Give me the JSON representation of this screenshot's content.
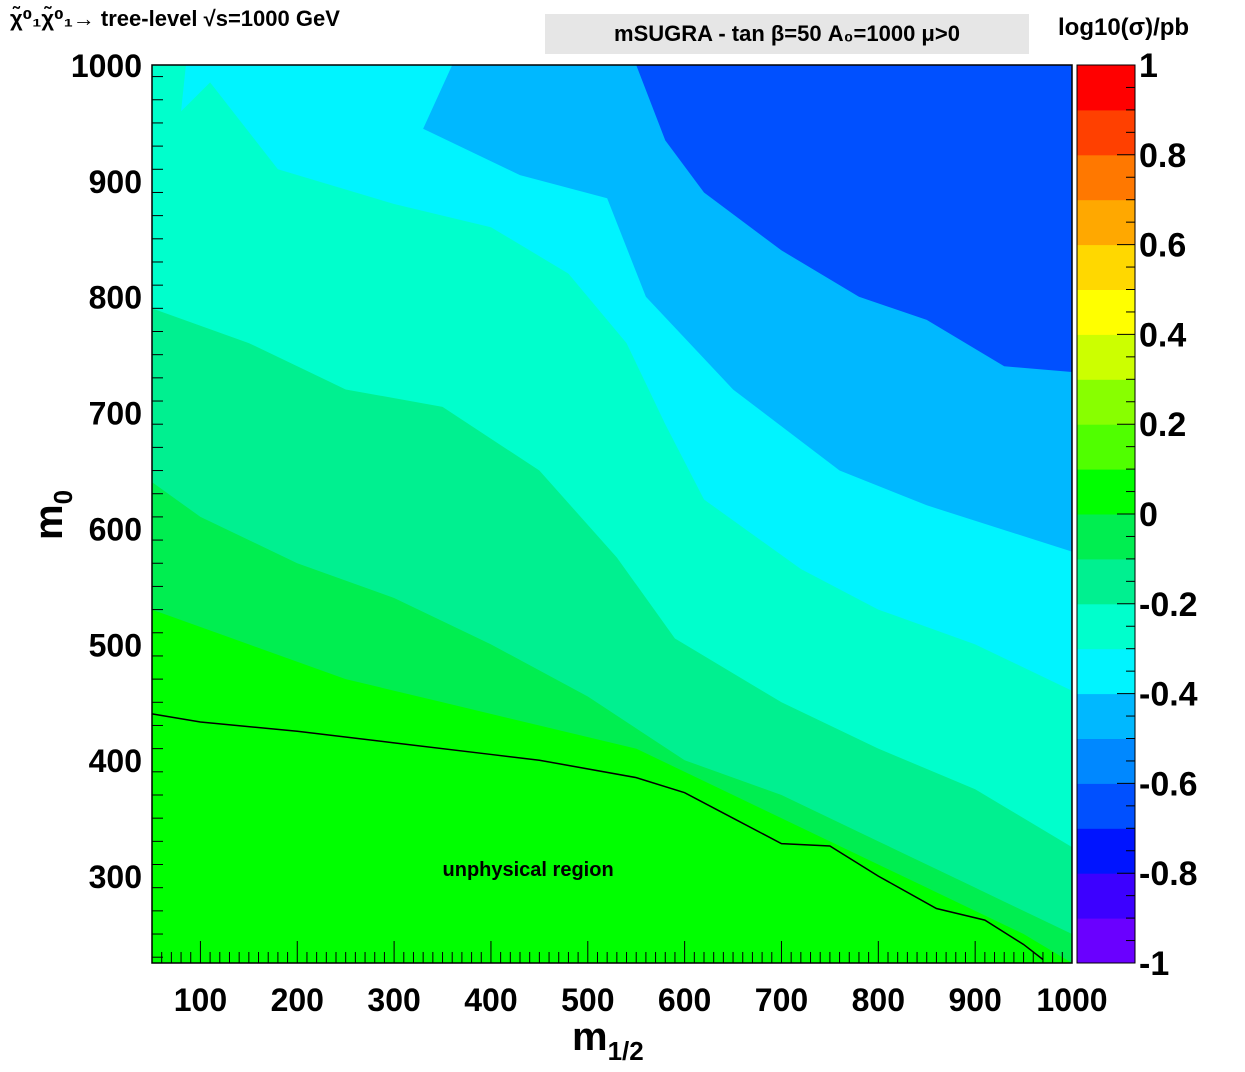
{
  "chart_data": {
    "type": "heatmap",
    "title": "χ̃⁰₁χ̃⁰₁→ tree-level √s=1000 GeV",
    "subtitle": "mSUGRA - tan β=50  A₀=1000  μ>0",
    "xlabel": "m1/2",
    "ylabel": "m0",
    "zlabel": "log10(σ)/pb",
    "xlim": [
      50,
      1000
    ],
    "ylim": [
      225,
      1000
    ],
    "zlim": [
      -1,
      1
    ],
    "x_ticks": [
      "100",
      "200",
      "300",
      "400",
      "500",
      "600",
      "700",
      "800",
      "900",
      "1000"
    ],
    "y_ticks": [
      "300",
      "400",
      "500",
      "600",
      "700",
      "800",
      "900",
      "1000"
    ],
    "z_ticks": [
      "-1",
      "-0.8",
      "-0.6",
      "-0.4",
      "-0.2",
      "0",
      "0.2",
      "0.4",
      "0.6",
      "0.8",
      "1"
    ],
    "palette": [
      "#6a00ff",
      "#3c00ff",
      "#0014ff",
      "#0050ff",
      "#0088ff",
      "#00b8ff",
      "#00f4ff",
      "#00ffcc",
      "#00f090",
      "#00ee50",
      "#00ff00",
      "#50ff00",
      "#88ff00",
      "#ccff00",
      "#ffff00",
      "#ffd800",
      "#ffa800",
      "#ff7800",
      "#ff4000",
      "#ff0000"
    ],
    "contour_bands": [
      {
        "level": -0.8,
        "boundary_m0": [
          [
            50,
            1000
          ],
          [
            700,
            1000
          ],
          [
            1000,
            1000
          ],
          [
            1000,
            1000
          ]
        ]
      },
      {
        "level": -0.7,
        "boundary_m0": [
          [
            50,
            1000
          ],
          [
            550,
            1000
          ],
          [
            580,
            935
          ],
          [
            620,
            890
          ],
          [
            700,
            840
          ],
          [
            780,
            800
          ],
          [
            850,
            780
          ],
          [
            930,
            740
          ],
          [
            1000,
            735
          ]
        ]
      },
      {
        "level": -0.6,
        "boundary_m0": [
          [
            50,
            1000
          ],
          [
            360,
            1000
          ],
          [
            330,
            945
          ],
          [
            430,
            905
          ],
          [
            520,
            885
          ],
          [
            560,
            800
          ],
          [
            650,
            720
          ],
          [
            760,
            650
          ],
          [
            850,
            620
          ],
          [
            1000,
            580
          ]
        ]
      },
      {
        "level": -0.5,
        "boundary_m0": [
          [
            50,
            1000
          ],
          [
            85,
            1000
          ],
          [
            80,
            960
          ],
          [
            110,
            985
          ],
          [
            180,
            910
          ],
          [
            300,
            880
          ],
          [
            400,
            860
          ],
          [
            480,
            820
          ],
          [
            540,
            760
          ],
          [
            580,
            690
          ],
          [
            620,
            625
          ],
          [
            720,
            565
          ],
          [
            800,
            530
          ],
          [
            900,
            500
          ],
          [
            1000,
            460
          ]
        ]
      },
      {
        "level": -0.4,
        "boundary_m0": [
          [
            50,
            790
          ],
          [
            150,
            760
          ],
          [
            250,
            720
          ],
          [
            350,
            705
          ],
          [
            450,
            650
          ],
          [
            530,
            575
          ],
          [
            590,
            505
          ],
          [
            700,
            450
          ],
          [
            800,
            410
          ],
          [
            900,
            375
          ],
          [
            1000,
            325
          ]
        ]
      },
      {
        "level": -0.3,
        "boundary_m0": [
          [
            50,
            640
          ],
          [
            100,
            610
          ],
          [
            200,
            570
          ],
          [
            300,
            540
          ],
          [
            400,
            500
          ],
          [
            500,
            455
          ],
          [
            600,
            400
          ],
          [
            700,
            370
          ],
          [
            800,
            330
          ],
          [
            900,
            290
          ],
          [
            1000,
            250
          ]
        ]
      },
      {
        "level": -0.2,
        "boundary_m0": [
          [
            50,
            530
          ],
          [
            150,
            500
          ],
          [
            250,
            470
          ],
          [
            350,
            450
          ],
          [
            450,
            430
          ],
          [
            550,
            410
          ],
          [
            650,
            370
          ],
          [
            750,
            330
          ],
          [
            850,
            290
          ],
          [
            950,
            250
          ],
          [
            1000,
            225
          ]
        ]
      }
    ],
    "band_levels": [
      -0.9,
      -0.7,
      -0.5,
      -0.4,
      -0.3,
      -0.2,
      -0.1,
      0.0
    ],
    "unphysical_boundary": [
      [
        50,
        440
      ],
      [
        100,
        433
      ],
      [
        200,
        425
      ],
      [
        300,
        415
      ],
      [
        400,
        405
      ],
      [
        450,
        400
      ],
      [
        550,
        385
      ],
      [
        600,
        372
      ],
      [
        650,
        350
      ],
      [
        700,
        328
      ],
      [
        750,
        326
      ],
      [
        800,
        300
      ],
      [
        860,
        272
      ],
      [
        910,
        262
      ],
      [
        950,
        241
      ],
      [
        970,
        228
      ]
    ],
    "unphysical_level": 0.0,
    "annotation": "unphysical region"
  }
}
